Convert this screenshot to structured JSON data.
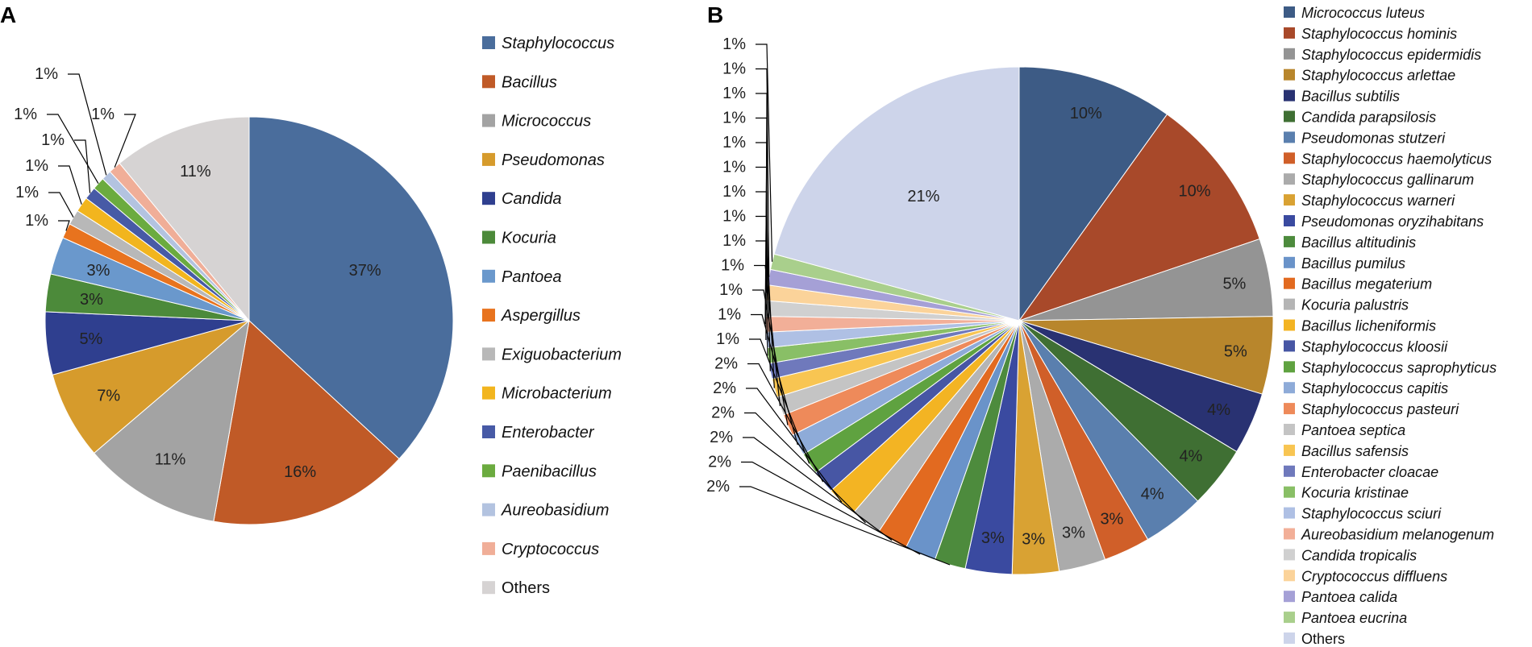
{
  "chart_data": [
    {
      "type": "pie",
      "panel": "A",
      "start": "12 o'clock, clockwise",
      "legend_position": "right",
      "slices": [
        {
          "name": "Staphylococcus",
          "label": "37%",
          "value": 37,
          "color": "#4A6D9C"
        },
        {
          "name": "Bacillus",
          "label": "16%",
          "value": 16,
          "color": "#C05A27"
        },
        {
          "name": "Micrococcus",
          "label": "11%",
          "value": 11,
          "color": "#A3A3A3"
        },
        {
          "name": "Pseudomonas",
          "label": "7%",
          "value": 7,
          "color": "#D69B2C"
        },
        {
          "name": "Candida",
          "label": "5%",
          "value": 5,
          "color": "#2F3F8F"
        },
        {
          "name": "Kocuria",
          "label": "3%",
          "value": 3,
          "color": "#4C8A3A"
        },
        {
          "name": "Pantoea",
          "label": "3%",
          "value": 3,
          "color": "#6A98CC"
        },
        {
          "name": "Aspergillus",
          "label": "1%",
          "value": 1.2,
          "color": "#E8731E"
        },
        {
          "name": "Exiguobacterium",
          "label": "1%",
          "value": 1.2,
          "color": "#B8B8B8"
        },
        {
          "name": "Microbacterium",
          "label": "1%",
          "value": 1.2,
          "color": "#F2B51E"
        },
        {
          "name": "Enterobacter",
          "label": "1%",
          "value": 1,
          "color": "#475AA6"
        },
        {
          "name": "Paenibacillus",
          "label": "1%",
          "value": 1,
          "color": "#6BAB3F"
        },
        {
          "name": "Aureobasidium",
          "label": "1%",
          "value": 0.8,
          "color": "#B3C3E0"
        },
        {
          "name": "Cryptococcus",
          "label": "1%",
          "value": 1,
          "color": "#F0AE98"
        },
        {
          "name": "Others",
          "label": "11%",
          "value": 11,
          "color": "#D6D3D3"
        }
      ]
    },
    {
      "type": "pie",
      "panel": "B",
      "start": "12 o'clock, clockwise",
      "legend_position": "right",
      "slices": [
        {
          "name": "Micrococcus luteus",
          "label": "10%",
          "value": 10,
          "color": "#3D5B85"
        },
        {
          "name": "Staphylococcus hominis",
          "label": "10%",
          "value": 10,
          "color": "#A8492A"
        },
        {
          "name": "Staphylococcus epidermidis",
          "label": "5%",
          "value": 5,
          "color": "#949494"
        },
        {
          "name": "Staphylococcus arlettae",
          "label": "5%",
          "value": 5,
          "color": "#B8862C"
        },
        {
          "name": "Bacillus subtilis",
          "label": "4%",
          "value": 4,
          "color": "#293272"
        },
        {
          "name": "Candida parapsilosis",
          "label": "4%",
          "value": 4,
          "color": "#3F6F33"
        },
        {
          "name": "Pseudomonas stutzeri",
          "label": "4%",
          "value": 4,
          "color": "#5A7FAE"
        },
        {
          "name": "Staphylococcus haemolyticus",
          "label": "3%",
          "value": 3,
          "color": "#D05F29"
        },
        {
          "name": "Staphylococcus gallinarum",
          "label": "3%",
          "value": 3,
          "color": "#ABABAB"
        },
        {
          "name": "Staphylococcus warneri",
          "label": "3%",
          "value": 3,
          "color": "#D9A233"
        },
        {
          "name": "Pseudomonas oryzihabitans",
          "label": "3%",
          "value": 3,
          "color": "#3A4AA0"
        },
        {
          "name": "Bacillus altitudinis",
          "label": "2%",
          "value": 2,
          "color": "#4D8B3D"
        },
        {
          "name": "Bacillus pumilus",
          "label": "2%",
          "value": 2,
          "color": "#6A93C9"
        },
        {
          "name": "Bacillus megaterium",
          "label": "2%",
          "value": 2,
          "color": "#E26A20"
        },
        {
          "name": "Kocuria palustris",
          "label": "2%",
          "value": 2,
          "color": "#B5B5B5"
        },
        {
          "name": "Bacillus licheniformis",
          "label": "2%",
          "value": 2,
          "color": "#F3B423"
        },
        {
          "name": "Staphylococcus kloosii",
          "label": "2%",
          "value": 1.5,
          "color": "#4756A4"
        },
        {
          "name": "Staphylococcus saprophyticus",
          "label": "1%",
          "value": 1.4,
          "color": "#5FA240"
        },
        {
          "name": "Staphylococcus capitis",
          "label": "1%",
          "value": 1.4,
          "color": "#8EABD8"
        },
        {
          "name": "Staphylococcus pasteuri",
          "label": "1%",
          "value": 1.4,
          "color": "#EE8A5A"
        },
        {
          "name": "Pantoea septica",
          "label": "1%",
          "value": 1.2,
          "color": "#C4C4C4"
        },
        {
          "name": "Bacillus safensis",
          "label": "1%",
          "value": 1.2,
          "color": "#F8C552"
        },
        {
          "name": "Enterobacter cloacae",
          "label": "1%",
          "value": 1,
          "color": "#6F79BC"
        },
        {
          "name": "Kocuria kristinae",
          "label": "1%",
          "value": 1,
          "color": "#89BF66"
        },
        {
          "name": "Staphylococcus sciuri",
          "label": "1%",
          "value": 1,
          "color": "#AFC0E4"
        },
        {
          "name": "Aureobasidium melanogenum",
          "label": "1%",
          "value": 1,
          "color": "#F2AF98"
        },
        {
          "name": "Candida tropicalis",
          "label": "1%",
          "value": 1,
          "color": "#D0D0D0"
        },
        {
          "name": "Cryptococcus diffluens",
          "label": "1%",
          "value": 1,
          "color": "#FBD39A"
        },
        {
          "name": "Pantoea calida",
          "label": "1%",
          "value": 1,
          "color": "#A5A0D6"
        },
        {
          "name": "Pantoea eucrina",
          "label": "1%",
          "value": 1,
          "color": "#A9CF8C"
        },
        {
          "name": "Others",
          "label": "21%",
          "value": 21,
          "color": "#CDD4EA"
        }
      ]
    }
  ]
}
